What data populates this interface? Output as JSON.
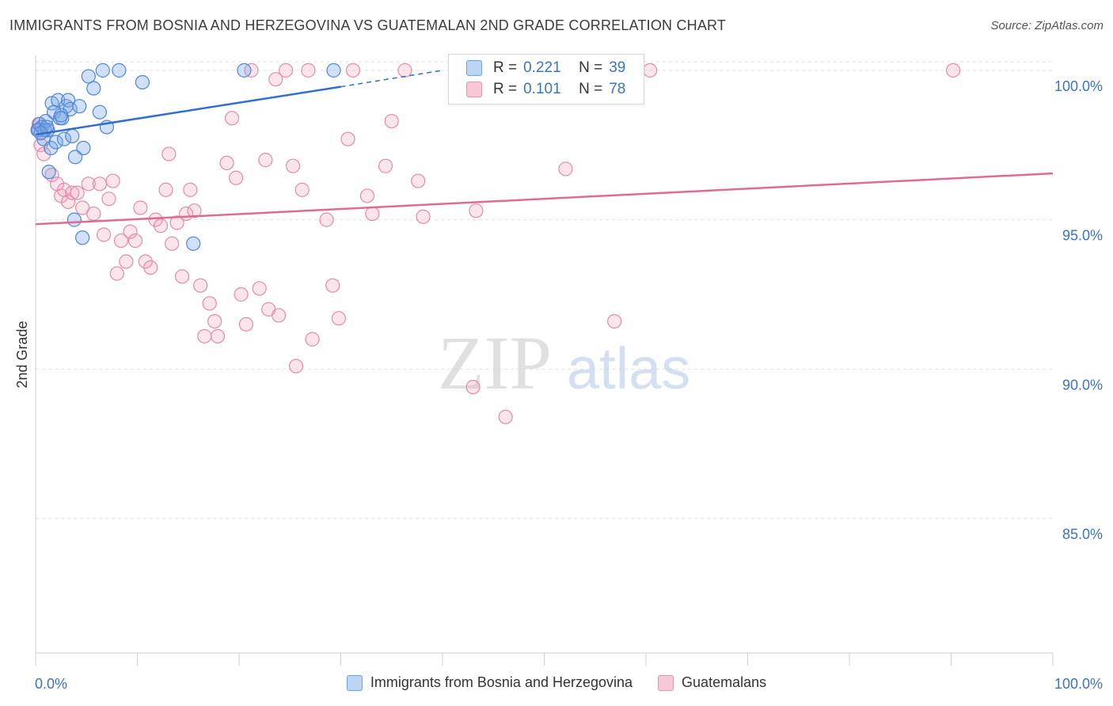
{
  "header": {
    "title": "IMMIGRANTS FROM BOSNIA AND HERZEGOVINA VS GUATEMALAN 2ND GRADE CORRELATION CHART",
    "source": "Source: ZipAtlas.com"
  },
  "watermark": {
    "zip": "ZIP",
    "atlas": "atlas"
  },
  "stats": [
    {
      "r_label": "R =",
      "r_value": "0.221",
      "n_label": "N =",
      "n_value": "39",
      "color": "#a9c8f0",
      "text_color": "#3b73c8"
    },
    {
      "r_label": "R =",
      "r_value": "0.101",
      "n_label": "N =",
      "n_value": "78",
      "color": "#f5b8cb",
      "text_color": "#3b73c8"
    }
  ],
  "legend": [
    {
      "label": "Immigrants from Bosnia and Herzegovina",
      "color": "#a9c8f0",
      "border": "#6f9fe0"
    },
    {
      "label": "Guatemalans",
      "color": "#f8c8d6",
      "border": "#e995b0"
    }
  ],
  "colors": {
    "blue_fill": "rgba(120,165,230,0.35)",
    "blue_stroke": "#4f86d6",
    "blue_line": "#2f6fd0",
    "pink_fill": "rgba(240,160,185,0.28)",
    "pink_stroke": "#e58aa8",
    "pink_line": "#e06a92",
    "grid": "#e3e3e3",
    "tick_label": "#3b73c8"
  },
  "chart_data": {
    "type": "scatter",
    "title": "IMMIGRANTS FROM BOSNIA AND HERZEGOVINA VS GUATEMALAN 2ND GRADE CORRELATION CHART",
    "xlabel": "",
    "ylabel": "2nd Grade",
    "xlim": [
      0,
      100
    ],
    "ylim": [
      80.5,
      100.5
    ],
    "x_tick_labels": [
      "0.0%",
      "100.0%"
    ],
    "y_ticks": [
      {
        "value": 85,
        "label": "85.0%"
      },
      {
        "value": 90,
        "label": "90.0%"
      },
      {
        "value": 95,
        "label": "95.0%"
      },
      {
        "value": 100,
        "label": "100.0%"
      }
    ],
    "grid": true,
    "legend_position": "bottom",
    "series": [
      {
        "name": "Immigrants from Bosnia and Herzegovina",
        "r": 0.221,
        "n": 39,
        "trend": {
          "x": [
            0,
            30
          ],
          "y": [
            97.85,
            99.45
          ],
          "dashed_to": [
            40,
            100.0
          ]
        },
        "points": [
          [
            0.3,
            98.0
          ],
          [
            0.4,
            98.2
          ],
          [
            0.6,
            98.1
          ],
          [
            0.8,
            97.7
          ],
          [
            1.0,
            98.3
          ],
          [
            1.2,
            98.0
          ],
          [
            1.3,
            96.6
          ],
          [
            1.5,
            97.4
          ],
          [
            1.6,
            98.9
          ],
          [
            1.8,
            98.6
          ],
          [
            2.0,
            97.6
          ],
          [
            2.2,
            99.0
          ],
          [
            2.4,
            98.4
          ],
          [
            2.6,
            98.4
          ],
          [
            2.8,
            97.7
          ],
          [
            3.0,
            98.8
          ],
          [
            3.2,
            99.0
          ],
          [
            3.4,
            98.7
          ],
          [
            3.6,
            97.8
          ],
          [
            3.9,
            97.1
          ],
          [
            4.3,
            98.8
          ],
          [
            4.7,
            97.4
          ],
          [
            5.2,
            99.8
          ],
          [
            5.7,
            99.4
          ],
          [
            6.3,
            98.6
          ],
          [
            6.6,
            100.0
          ],
          [
            7.0,
            98.1
          ],
          [
            8.2,
            100.0
          ],
          [
            10.5,
            99.6
          ],
          [
            20.5,
            100.0
          ],
          [
            29.3,
            100.0
          ],
          [
            3.8,
            95.0
          ],
          [
            4.6,
            94.4
          ],
          [
            15.5,
            94.2
          ],
          [
            0.2,
            98.0
          ],
          [
            0.9,
            98.0
          ],
          [
            2.5,
            98.5
          ],
          [
            1.1,
            98.1
          ],
          [
            0.5,
            97.9
          ]
        ]
      },
      {
        "name": "Guatemalans",
        "r": 0.101,
        "n": 78,
        "trend": {
          "x": [
            0,
            100
          ],
          "y": [
            94.85,
            96.55
          ]
        },
        "points": [
          [
            0.3,
            98.2
          ],
          [
            0.5,
            97.5
          ],
          [
            0.8,
            97.2
          ],
          [
            1.2,
            98.0
          ],
          [
            1.6,
            96.5
          ],
          [
            2.1,
            96.2
          ],
          [
            2.5,
            95.8
          ],
          [
            2.8,
            96.0
          ],
          [
            3.2,
            95.6
          ],
          [
            3.6,
            95.9
          ],
          [
            4.1,
            95.9
          ],
          [
            4.6,
            95.4
          ],
          [
            5.2,
            96.2
          ],
          [
            5.7,
            95.2
          ],
          [
            6.3,
            96.2
          ],
          [
            6.7,
            94.5
          ],
          [
            7.2,
            95.7
          ],
          [
            7.6,
            96.3
          ],
          [
            8.0,
            93.2
          ],
          [
            8.4,
            94.3
          ],
          [
            8.9,
            93.6
          ],
          [
            9.3,
            94.6
          ],
          [
            9.8,
            94.3
          ],
          [
            10.3,
            95.4
          ],
          [
            10.8,
            93.6
          ],
          [
            11.3,
            93.4
          ],
          [
            11.8,
            95.0
          ],
          [
            12.3,
            94.8
          ],
          [
            12.8,
            96.0
          ],
          [
            13.1,
            97.2
          ],
          [
            13.4,
            94.2
          ],
          [
            13.9,
            94.9
          ],
          [
            14.4,
            93.1
          ],
          [
            14.8,
            95.2
          ],
          [
            15.2,
            96.0
          ],
          [
            15.6,
            95.3
          ],
          [
            16.2,
            92.8
          ],
          [
            16.6,
            91.1
          ],
          [
            17.1,
            92.2
          ],
          [
            17.6,
            91.6
          ],
          [
            17.9,
            91.1
          ],
          [
            18.8,
            96.9
          ],
          [
            19.3,
            98.4
          ],
          [
            19.7,
            96.4
          ],
          [
            20.2,
            92.5
          ],
          [
            20.7,
            91.5
          ],
          [
            21.2,
            100.0
          ],
          [
            22.0,
            92.7
          ],
          [
            22.6,
            97.0
          ],
          [
            22.9,
            92.0
          ],
          [
            23.6,
            99.7
          ],
          [
            23.9,
            91.8
          ],
          [
            24.6,
            100.0
          ],
          [
            25.3,
            96.8
          ],
          [
            25.6,
            90.1
          ],
          [
            26.2,
            96.0
          ],
          [
            26.8,
            100.0
          ],
          [
            27.2,
            91.0
          ],
          [
            28.6,
            95.0
          ],
          [
            29.2,
            92.8
          ],
          [
            29.8,
            91.7
          ],
          [
            30.7,
            97.7
          ],
          [
            31.2,
            100.0
          ],
          [
            32.6,
            95.8
          ],
          [
            33.1,
            95.2
          ],
          [
            34.4,
            96.8
          ],
          [
            35.0,
            98.3
          ],
          [
            36.3,
            100.0
          ],
          [
            37.6,
            96.3
          ],
          [
            38.1,
            95.1
          ],
          [
            43.0,
            89.4
          ],
          [
            43.3,
            95.3
          ],
          [
            46.2,
            88.4
          ],
          [
            52.1,
            96.7
          ],
          [
            56.9,
            91.6
          ],
          [
            59.1,
            100.0
          ],
          [
            60.4,
            100.0
          ],
          [
            90.2,
            100.0
          ]
        ]
      }
    ]
  }
}
